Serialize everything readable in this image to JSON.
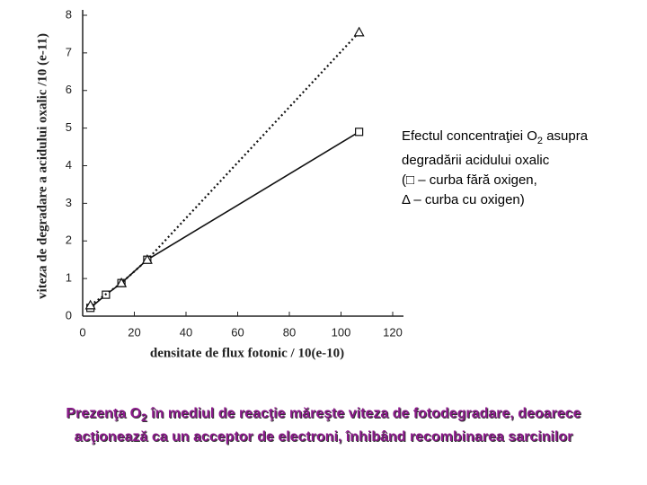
{
  "chart_data": {
    "type": "line",
    "xlabel": "densitate de flux fotonic / 10(e-10)",
    "ylabel": "viteza de degradare a acidului oxalic /10 (e-11)",
    "xlim": [
      0,
      120
    ],
    "xticks": [
      0,
      20,
      40,
      60,
      80,
      100,
      120
    ],
    "ylim": [
      0,
      8
    ],
    "yticks": [
      0,
      1,
      2,
      3,
      4,
      5,
      6,
      7,
      8
    ],
    "series": [
      {
        "color": "#111111",
        "marker": "square",
        "linestyle": "solid",
        "x": [
          3,
          9,
          15,
          25,
          107
        ],
        "values": [
          0.22,
          0.57,
          0.88,
          1.5,
          4.9
        ]
      },
      {
        "color": "#111111",
        "marker": "triangle",
        "linestyle": "dotted",
        "x": [
          3,
          15,
          25,
          107
        ],
        "values": [
          0.29,
          0.88,
          1.5,
          7.55
        ]
      }
    ],
    "annotation": [
      "Efectul concentraţiei O",
      "2",
      " asupra",
      "degradării acidului oxalic",
      "(□ – curba fără oxigen,",
      "Δ – curba cu oxigen)"
    ]
  },
  "caption": [
    "Prezenţa O",
    "2",
    " în mediul de reacţie măreşte viteza de fotodegradare, deoarece",
    "acţionează ca un acceptor de electroni, înhibând recombinarea sarcinilor"
  ]
}
